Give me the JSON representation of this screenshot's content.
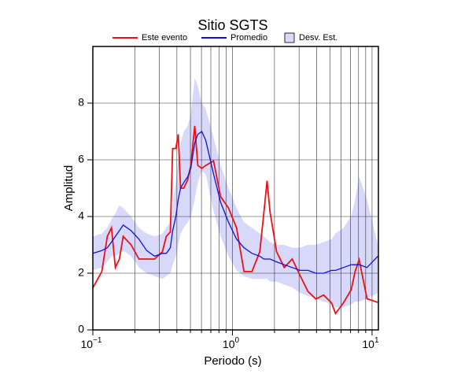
{
  "chart_data": {
    "type": "line",
    "title": "Sitio SGTS",
    "xlabel": "Periodo (s)",
    "ylabel": "Amplitud",
    "xscale": "log",
    "xlim": [
      0.1,
      11.1
    ],
    "ylim": [
      0,
      10
    ],
    "xticks": [
      {
        "value": 0.1,
        "label": "10",
        "exp": "−1"
      },
      {
        "value": 1,
        "label": "10",
        "exp": "0"
      },
      {
        "value": 10,
        "label": "10",
        "exp": "1"
      }
    ],
    "xminor": [
      0.2,
      0.3,
      0.4,
      0.5,
      0.6,
      0.7,
      0.8,
      0.9,
      2,
      3,
      4,
      5,
      6,
      7,
      8,
      9
    ],
    "yticks": [
      0,
      2,
      4,
      6,
      8
    ],
    "grid": true,
    "x": [
      0.1,
      0.116,
      0.127,
      0.136,
      0.145,
      0.155,
      0.165,
      0.188,
      0.214,
      0.243,
      0.277,
      0.315,
      0.336,
      0.359,
      0.373,
      0.393,
      0.409,
      0.425,
      0.448,
      0.478,
      0.503,
      0.537,
      0.565,
      0.603,
      0.643,
      0.732,
      0.823,
      0.937,
      1.07,
      1.21,
      1.38,
      1.57,
      1.68,
      1.77,
      1.86,
      2.07,
      2.35,
      2.68,
      3.05,
      3.47,
      3.96,
      4.5,
      5.13,
      5.47,
      6.23,
      7.09,
      7.56,
      8.08,
      9.2,
      11.0
    ],
    "band": {
      "name": "Desv. Est.",
      "color": "#d8d8fb",
      "high": [
        3.3,
        3.4,
        3.6,
        3.9,
        4.1,
        4.4,
        4.3,
        4.0,
        3.6,
        3.4,
        3.3,
        3.4,
        3.6,
        3.8,
        4.5,
        5.2,
        6.0,
        6.6,
        7.0,
        7.2,
        7.6,
        8.9,
        8.6,
        8.0,
        7.8,
        6.8,
        5.8,
        5.0,
        4.3,
        3.8,
        3.6,
        3.4,
        3.3,
        3.2,
        3.1,
        3.0,
        3.0,
        2.9,
        2.9,
        3.0,
        3.0,
        3.1,
        3.2,
        3.4,
        3.6,
        4.0,
        4.6,
        5.4,
        4.6,
        3.0
      ],
      "low": [
        2.1,
        2.2,
        2.4,
        2.6,
        2.6,
        2.7,
        2.8,
        2.6,
        2.2,
        2.0,
        1.9,
        1.8,
        1.9,
        2.0,
        2.3,
        2.6,
        3.0,
        3.4,
        3.6,
        3.8,
        4.0,
        4.6,
        5.2,
        5.6,
        5.5,
        4.2,
        3.3,
        2.6,
        2.1,
        1.9,
        1.8,
        1.8,
        1.8,
        1.8,
        1.7,
        1.7,
        1.6,
        1.5,
        1.3,
        1.2,
        1.1,
        1.0,
        0.9,
        0.8,
        0.8,
        0.9,
        1.0,
        1.0,
        1.1,
        1.3
      ]
    },
    "series": [
      {
        "name": "Este evento",
        "color": "#ee1111",
        "values": [
          1.48,
          2.06,
          3.3,
          3.6,
          2.2,
          2.5,
          3.3,
          3.0,
          2.5,
          2.5,
          2.5,
          2.76,
          3.3,
          3.45,
          6.4,
          6.4,
          6.9,
          5.0,
          5.0,
          5.3,
          5.8,
          7.2,
          5.8,
          5.7,
          5.8,
          5.96,
          4.7,
          4.3,
          3.6,
          2.06,
          2.06,
          2.76,
          4.15,
          5.26,
          4.15,
          2.76,
          2.2,
          2.5,
          1.92,
          1.36,
          1.09,
          1.23,
          0.95,
          0.58,
          0.95,
          1.42,
          2.06,
          2.48,
          1.1,
          0.97
        ]
      },
      {
        "name": "Promedio",
        "color": "#1111dd",
        "values": [
          2.7,
          2.8,
          2.9,
          3.1,
          3.3,
          3.5,
          3.7,
          3.5,
          3.2,
          2.8,
          2.6,
          2.7,
          2.7,
          2.9,
          3.5,
          4.0,
          4.6,
          5.0,
          5.2,
          5.4,
          5.7,
          6.6,
          6.9,
          7.0,
          6.7,
          5.5,
          4.5,
          3.8,
          3.2,
          2.9,
          2.7,
          2.6,
          2.5,
          2.5,
          2.5,
          2.4,
          2.3,
          2.2,
          2.1,
          2.1,
          2.0,
          2.0,
          2.1,
          2.1,
          2.2,
          2.3,
          2.3,
          2.3,
          2.2,
          2.6
        ]
      }
    ]
  }
}
